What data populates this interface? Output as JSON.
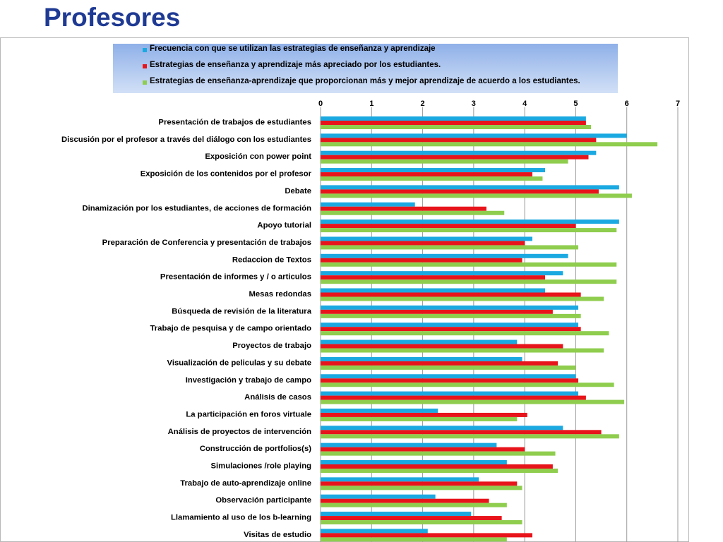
{
  "page": {
    "title": "Profesores"
  },
  "colors": {
    "title": "#1f3a93",
    "series": [
      "#1ba9e1",
      "#e8141b",
      "#8fcd4e"
    ],
    "legend_bg": "#a9c3ee",
    "grid": "#9a9a9a"
  },
  "chart_data": {
    "type": "bar",
    "orientation": "horizontal",
    "title": "",
    "xlabel": "",
    "ylabel": "",
    "xlim": [
      0,
      7
    ],
    "x_ticks": [
      "0",
      "1",
      "2",
      "3",
      "4",
      "5",
      "6",
      "7"
    ],
    "x_axis_position": "top",
    "grid": true,
    "legend_placement": "top",
    "categories": [
      "Presentación de trabajos de estudiantes",
      "Discusión por el profesor a través del diálogo con los estudiantes",
      "Exposición con power point",
      "Exposición de los contenidos por el profesor",
      "Debate",
      "Dinamización por los estudiantes, de acciones de formación",
      "Apoyo tutorial",
      "Preparación de Conferencia y presentación de trabajos",
      "Redaccion de Textos",
      "Presentación de informes y / o articulos",
      "Mesas redondas",
      "Búsqueda de revisión de la literatura",
      "Trabajo de pesquisa y de campo orientado",
      "Proyectos de trabajo",
      "Visualización de peliculas y su debate",
      "Investigación y trabajo de campo",
      "Análisis de casos",
      "La participación en foros virtuale",
      "Análisis de proyectos de intervención",
      "Construcción de portfolios(s)",
      "Simulaciones /role playing",
      "Trabajo de auto-aprendizaje online",
      "Observación participante",
      "Llamamiento al uso de los b-learning",
      "Visitas de estudio"
    ],
    "series": [
      {
        "name": "Frecuencia con que se utilizan las estrategias de enseñanza y aprendizaje",
        "color": "#1ba9e1",
        "values": [
          5.2,
          6.0,
          5.4,
          4.4,
          5.85,
          1.85,
          5.85,
          4.15,
          4.85,
          4.75,
          4.4,
          5.05,
          5.05,
          3.85,
          3.95,
          5.0,
          5.05,
          2.3,
          4.75,
          3.45,
          3.65,
          3.1,
          2.25,
          2.95,
          2.1
        ]
      },
      {
        "name": "Estrategias de enseñanza y aprendizaje más apreciado por los estudiantes.",
        "color": "#e8141b",
        "values": [
          5.2,
          5.4,
          5.25,
          4.15,
          5.45,
          3.25,
          5.0,
          4.0,
          3.95,
          4.4,
          5.1,
          4.55,
          5.1,
          4.75,
          4.65,
          5.05,
          5.2,
          4.05,
          5.5,
          4.0,
          4.55,
          3.85,
          3.3,
          3.55,
          4.15
        ]
      },
      {
        "name": "Estrategias de enseñanza-aprendizaje que proporcionan más y mejor aprendizaje de acuerdo a los estudiantes.",
        "color": "#8fcd4e",
        "values": [
          5.3,
          6.6,
          4.85,
          4.35,
          6.1,
          3.6,
          5.8,
          5.05,
          5.8,
          5.8,
          5.55,
          5.1,
          5.65,
          5.55,
          5.0,
          5.75,
          5.95,
          3.85,
          5.85,
          4.6,
          4.65,
          3.95,
          3.65,
          3.95,
          3.65
        ]
      }
    ]
  }
}
